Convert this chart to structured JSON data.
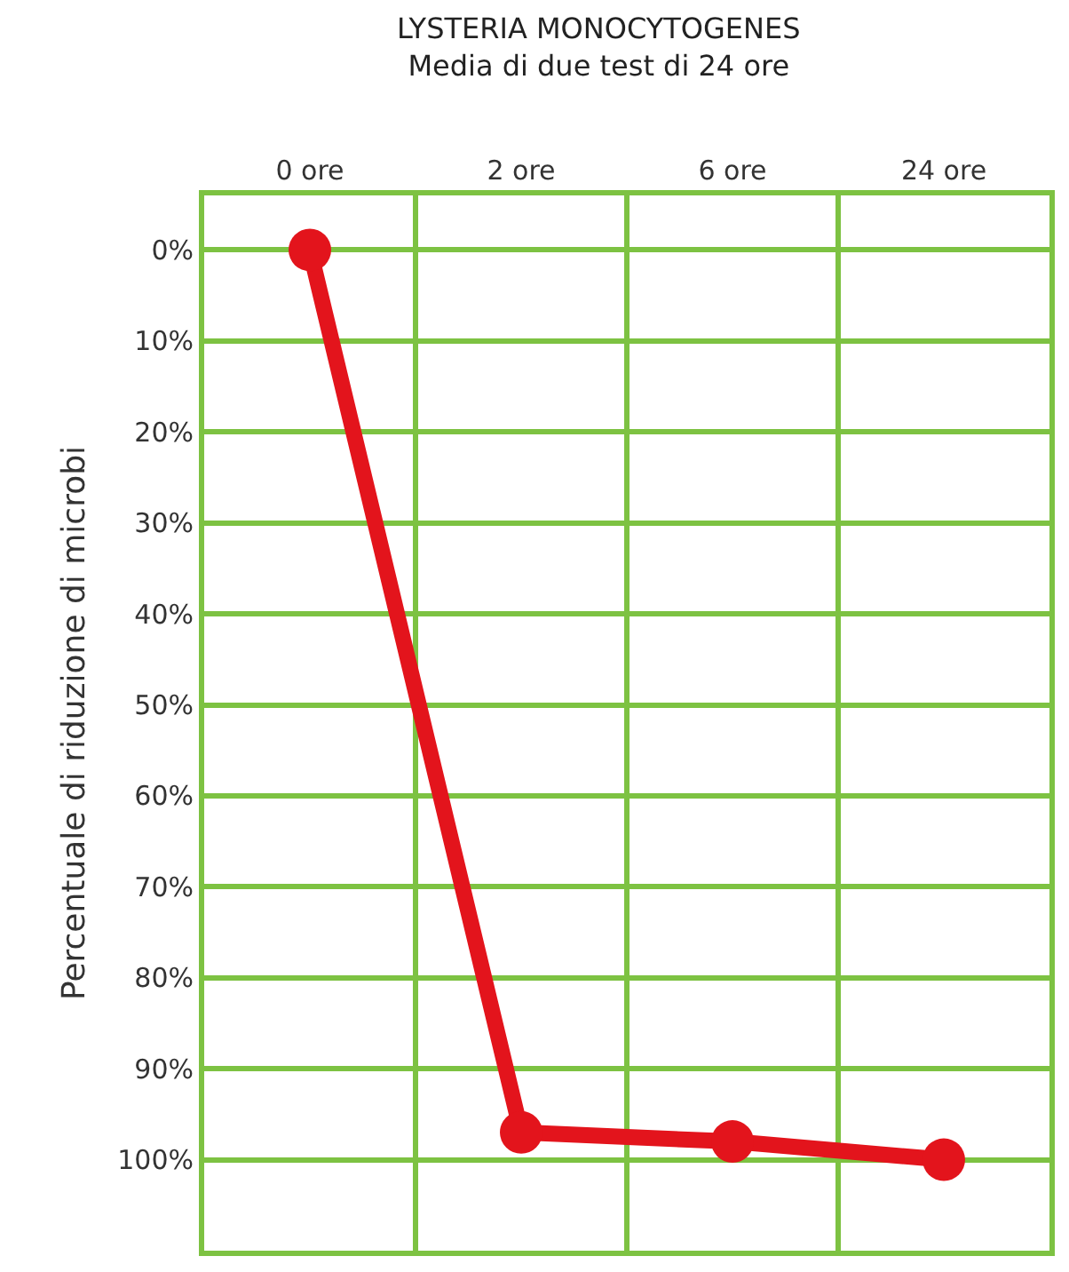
{
  "chart_data": {
    "type": "line",
    "title": "LYSTERIA MONOCYTOGENES",
    "subtitle": "Media di due test di 24 ore",
    "ylabel": "Percentuale di riduzione di microbi",
    "categories": [
      "0 ore",
      "2 ore",
      "6 ore",
      "24 ore"
    ],
    "series": [
      {
        "color": "#e3141c",
        "values": [
          0,
          97,
          98,
          100
        ]
      }
    ],
    "ylim": [
      110,
      -6
    ],
    "yticks": [
      {
        "value": 0,
        "label": "0%"
      },
      {
        "value": 10,
        "label": "10%"
      },
      {
        "value": 20,
        "label": "20%"
      },
      {
        "value": 30,
        "label": "30%"
      },
      {
        "value": 40,
        "label": "40%"
      },
      {
        "value": 50,
        "label": "50%"
      },
      {
        "value": 60,
        "label": "60%"
      },
      {
        "value": 70,
        "label": "70%"
      },
      {
        "value": 80,
        "label": "80%"
      },
      {
        "value": 90,
        "label": "90%"
      },
      {
        "value": 100,
        "label": "100%"
      }
    ],
    "grid": true,
    "marker": "circle",
    "line_style": "solid"
  }
}
